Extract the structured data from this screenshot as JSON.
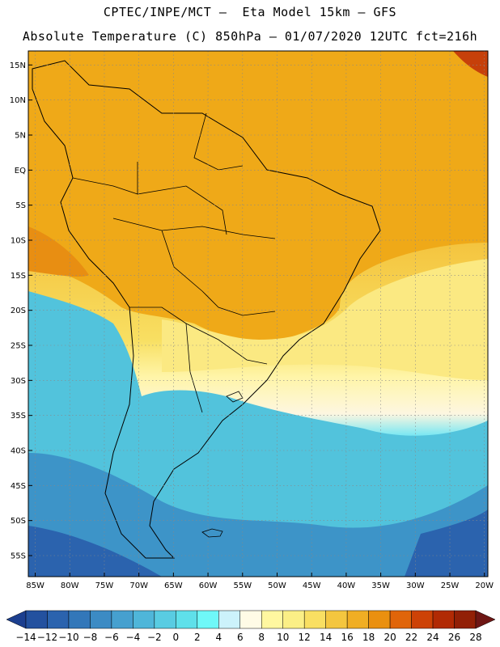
{
  "header": {
    "line1": "CPTEC/INPE/MCT –  Eta Model 15km – GFS",
    "line2": "Absolute Temperature (C) 850hPa – 01/07/2020 12UTC fct=216h"
  },
  "map": {
    "lon_range": [
      -86,
      -19.5
    ],
    "lat_range": [
      -58,
      17
    ],
    "lat_ticks": [
      {
        "value": 15,
        "label": "15N"
      },
      {
        "value": 10,
        "label": "10N"
      },
      {
        "value": 5,
        "label": "5N"
      },
      {
        "value": 0,
        "label": "EQ"
      },
      {
        "value": -5,
        "label": "5S"
      },
      {
        "value": -10,
        "label": "10S"
      },
      {
        "value": -15,
        "label": "15S"
      },
      {
        "value": -20,
        "label": "20S"
      },
      {
        "value": -25,
        "label": "25S"
      },
      {
        "value": -30,
        "label": "30S"
      },
      {
        "value": -35,
        "label": "35S"
      },
      {
        "value": -40,
        "label": "40S"
      },
      {
        "value": -45,
        "label": "45S"
      },
      {
        "value": -50,
        "label": "50S"
      },
      {
        "value": -55,
        "label": "55S"
      }
    ],
    "lon_ticks": [
      {
        "value": -85,
        "label": "85W"
      },
      {
        "value": -80,
        "label": "80W"
      },
      {
        "value": -75,
        "label": "75W"
      },
      {
        "value": -70,
        "label": "70W"
      },
      {
        "value": -65,
        "label": "65W"
      },
      {
        "value": -60,
        "label": "60W"
      },
      {
        "value": -55,
        "label": "55W"
      },
      {
        "value": -50,
        "label": "50W"
      },
      {
        "value": -45,
        "label": "45W"
      },
      {
        "value": -40,
        "label": "40W"
      },
      {
        "value": -35,
        "label": "35W"
      },
      {
        "value": -30,
        "label": "30W"
      },
      {
        "value": -25,
        "label": "25W"
      },
      {
        "value": -20,
        "label": "20W"
      }
    ]
  },
  "colorbar": {
    "labels": [
      "-14",
      "-12",
      "-10",
      "-8",
      "-6",
      "-4",
      "-2",
      "0",
      "2",
      "4",
      "6",
      "8",
      "10",
      "12",
      "14",
      "16",
      "18",
      "20",
      "22",
      "24",
      "26",
      "28"
    ],
    "colors": [
      "#1c3f8f",
      "#23519f",
      "#2b63ae",
      "#3377b9",
      "#3c8bc4",
      "#46a0cf",
      "#4fb6d9",
      "#59cce2",
      "#5fe0ea",
      "#6ff8f8",
      "#ccf2fb",
      "#fffbe6",
      "#fff7a0",
      "#fbef86",
      "#f9df62",
      "#f4c63f",
      "#f0ae24",
      "#ea9010",
      "#e0650a",
      "#cd4206",
      "#b12a04",
      "#922006",
      "#6e1614"
    ]
  }
}
